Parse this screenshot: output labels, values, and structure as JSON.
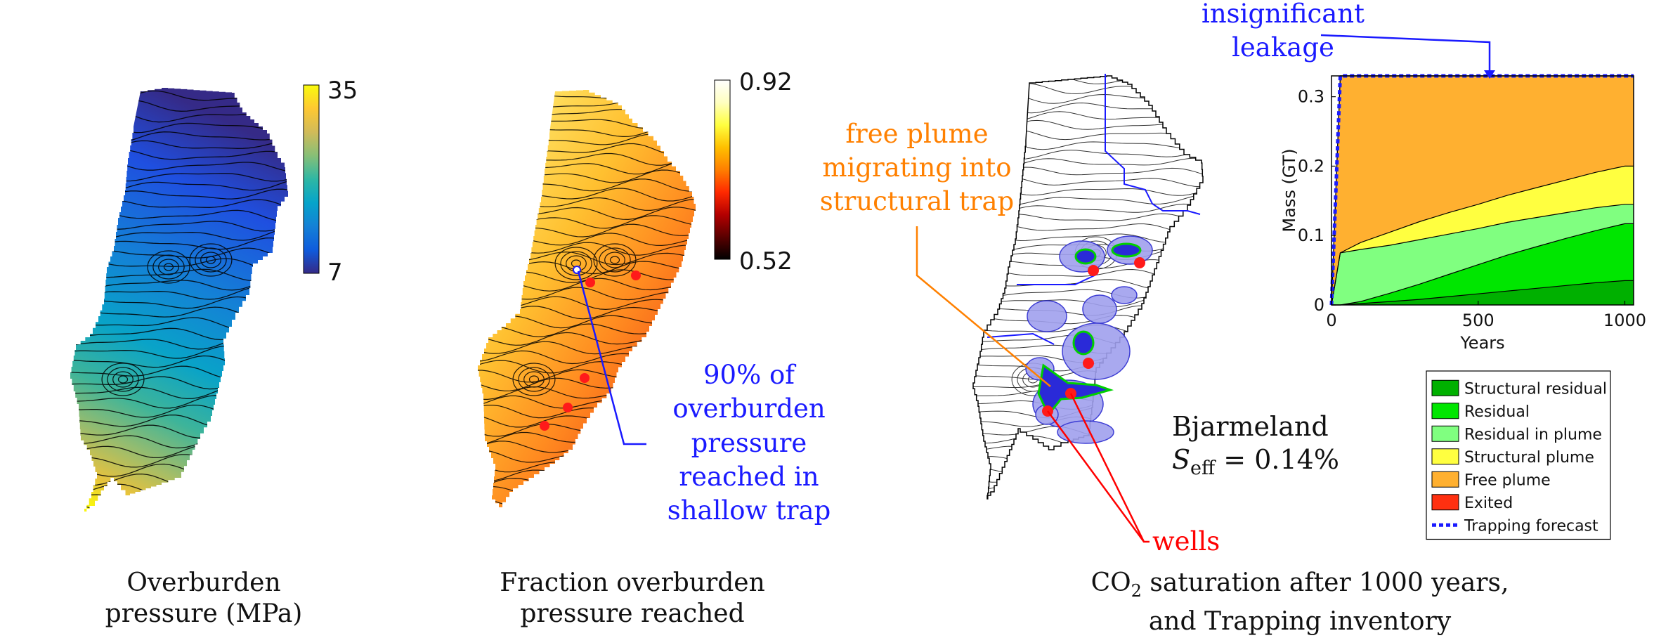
{
  "panels": {
    "overburden": {
      "colorbar_max": "35",
      "colorbar_min": "7",
      "caption_line1": "Overburden",
      "caption_line2": "pressure (MPa)",
      "colormap": [
        "#352a87",
        "#0f5cdd",
        "#1481d6",
        "#06a4ca",
        "#2eb7a4",
        "#87bf77",
        "#d1bb59",
        "#fec832",
        "#f9fb0e"
      ]
    },
    "fraction": {
      "colorbar_max": "0.92",
      "colorbar_min": "0.52",
      "annotation": [
        "90% of",
        "overburden",
        "pressure",
        "reached in",
        "shallow trap"
      ],
      "annotation_color": "#1a1aff",
      "caption_line1": "Fraction overburden",
      "caption_line2": "pressure reached",
      "colormap": [
        "#000000",
        "#5a0000",
        "#b40000",
        "#ff2a00",
        "#ff7f00",
        "#ffc000",
        "#ffff40",
        "#ffffc0",
        "#ffffff"
      ]
    },
    "saturation": {
      "annotation_plume": [
        "free plume",
        "migrating into",
        "structural trap"
      ],
      "annotation_plume_color": "#ff8000",
      "annotation_wells": "wells",
      "annotation_wells_color": "#ff0000",
      "annotation_leak": [
        "insignificant",
        "leakage"
      ],
      "annotation_leak_color": "#1a1aff",
      "site_name": "Bjarmeland",
      "seff_label": "S",
      "seff_sub": "eff",
      "seff_value": " = 0.14%",
      "caption_line1_pre": "CO",
      "caption_line1_sub": "2",
      "caption_line1_post": " saturation after 1000 years,",
      "caption_line2": "and Trapping inventory"
    }
  },
  "chart_data": {
    "type": "area",
    "title": "",
    "xlabel": "Years",
    "ylabel": "Mass (GT)",
    "xlim": [
      0,
      1030
    ],
    "ylim": [
      0,
      0.33
    ],
    "xticks": [
      0,
      500,
      1000
    ],
    "yticks": [
      0,
      0.1,
      0.2,
      0.3
    ],
    "x": [
      0,
      30,
      100,
      200,
      300,
      400,
      500,
      600,
      700,
      800,
      900,
      1000
    ],
    "stacked": true,
    "series": [
      {
        "name": "Structural residual",
        "color": "#00b000",
        "values": [
          0,
          0.0,
          0.002,
          0.005,
          0.008,
          0.012,
          0.016,
          0.02,
          0.024,
          0.028,
          0.032,
          0.035
        ]
      },
      {
        "name": "Residual",
        "color": "#00e600",
        "values": [
          0,
          0.0,
          0.003,
          0.012,
          0.022,
          0.032,
          0.042,
          0.052,
          0.06,
          0.068,
          0.075,
          0.082
        ]
      },
      {
        "name": "Residual in plume",
        "color": "#80ff80",
        "values": [
          0,
          0.075,
          0.075,
          0.069,
          0.064,
          0.058,
          0.052,
          0.047,
          0.042,
          0.037,
          0.033,
          0.028
        ]
      },
      {
        "name": "Structural plume",
        "color": "#ffff40",
        "values": [
          0,
          0.0,
          0.01,
          0.019,
          0.026,
          0.031,
          0.035,
          0.039,
          0.043,
          0.047,
          0.051,
          0.055
        ]
      },
      {
        "name": "Free plume",
        "color": "#ffb030",
        "values": [
          0,
          0.255,
          0.24,
          0.225,
          0.21,
          0.197,
          0.185,
          0.172,
          0.161,
          0.15,
          0.139,
          0.13
        ]
      },
      {
        "name": "Exited",
        "color": "#ff3010",
        "values": [
          0,
          0,
          0,
          0,
          0,
          0,
          0,
          0,
          0,
          0,
          0,
          0
        ]
      }
    ],
    "forecast": {
      "name": "Trapping forecast",
      "color": "#1a1aff",
      "x": [
        0,
        30,
        1030
      ],
      "values": [
        0,
        0.33,
        0.33
      ]
    },
    "legend_placement": "below-right"
  }
}
